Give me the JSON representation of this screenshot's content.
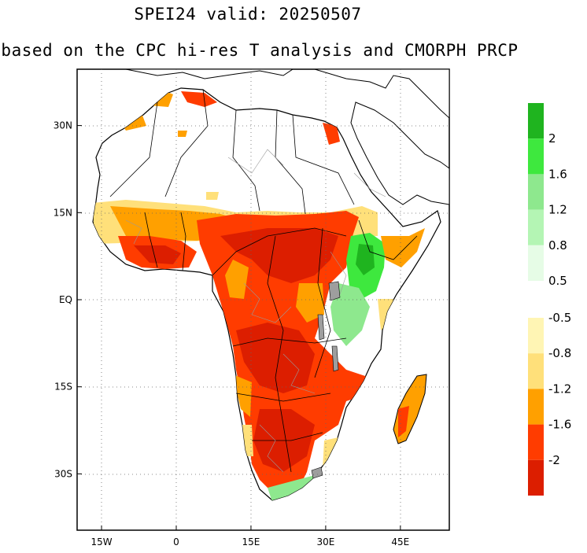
{
  "title": "SPEI24   valid: 20250507",
  "subtitle": "based on the CPC hi-res T analysis and CMORPH PRCP",
  "axes": {
    "lat_ticks": [
      {
        "label": "30N",
        "value": 30
      },
      {
        "label": "15N",
        "value": 15
      },
      {
        "label": "EQ",
        "value": 0
      },
      {
        "label": "15S",
        "value": -15
      },
      {
        "label": "30S",
        "value": -30
      }
    ],
    "lon_ticks": [
      {
        "label": "15W",
        "value": -15
      },
      {
        "label": "0",
        "value": 0
      },
      {
        "label": "15E",
        "value": 15
      },
      {
        "label": "30E",
        "value": 30
      },
      {
        "label": "45E",
        "value": 45
      }
    ]
  },
  "legend_wet": {
    "colors": [
      "#1fb41f",
      "#3ee83e",
      "#8ee88e",
      "#b4f5b4",
      "#e6fce6"
    ],
    "labels": [
      "2",
      "1.6",
      "1.2",
      "0.8",
      "0.5"
    ]
  },
  "legend_dry": {
    "colors": [
      "#fff5b4",
      "#ffe07a",
      "#ffa000",
      "#ff3c00",
      "#dc1e00"
    ],
    "labels": [
      "-0.5",
      "-0.8",
      "-1.2",
      "-1.6",
      "-2"
    ]
  },
  "colors": {
    "severe_dry": "#dc1e00",
    "very_dry": "#ff3c00",
    "moderate_dry": "#ffa000",
    "mild_dry": "#ffe07a",
    "near_dry": "#fff5b4",
    "wet": "#3ee83e",
    "land": "#ffffff"
  }
}
